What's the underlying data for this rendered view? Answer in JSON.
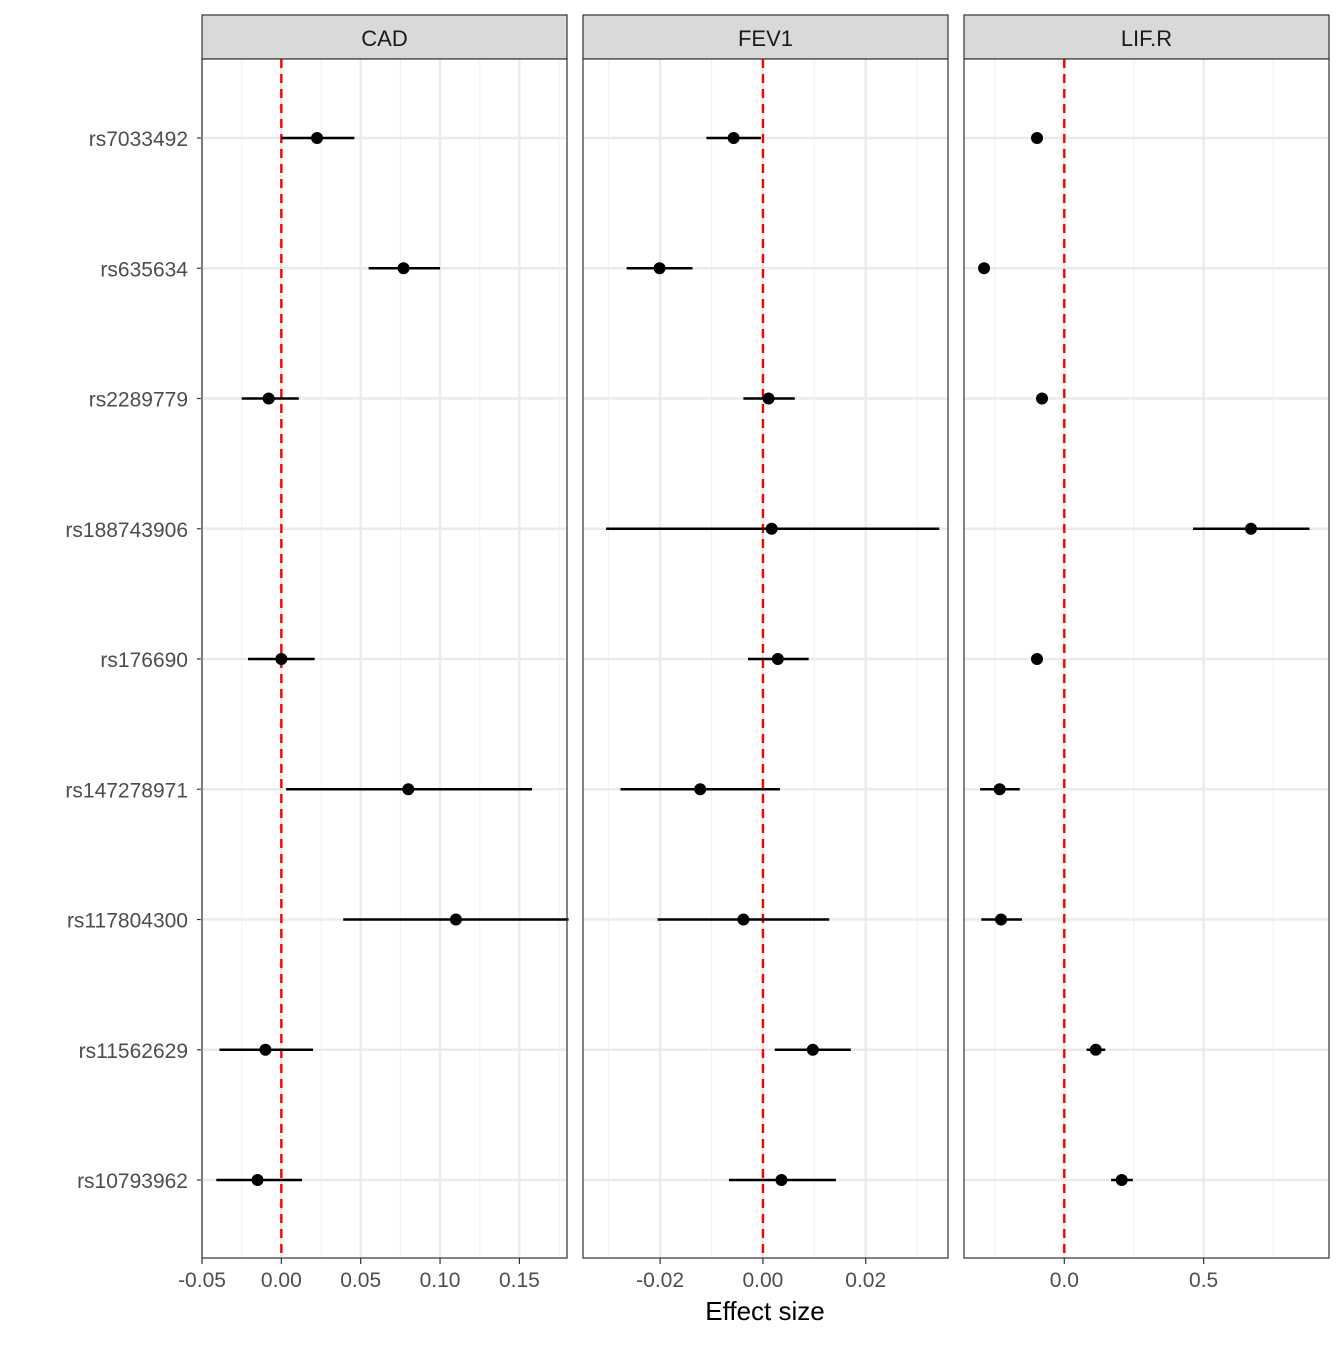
{
  "chart_data": {
    "type": "scatter",
    "subtype": "forest-plot-faceted",
    "xlabel": "Effect size",
    "ylabel": "",
    "reference_line": {
      "x": 0,
      "color": "#ff0000",
      "style": "dashed"
    },
    "grid": true,
    "categories": [
      "rs7033492",
      "rs635634",
      "rs2289779",
      "rs188743906",
      "rs176690",
      "rs147278971",
      "rs117804300",
      "rs11562629",
      "rs10793962"
    ],
    "panels": [
      {
        "name": "CAD",
        "xlim": [
          -0.05,
          0.18
        ],
        "ticks": [
          -0.05,
          0.0,
          0.05,
          0.1,
          0.15
        ],
        "tick_labels": [
          "-0.05",
          "0.00",
          "0.05",
          "0.10",
          "0.15"
        ],
        "points": [
          {
            "snp": "rs7033492",
            "estimate": 0.0225,
            "lower": 0.0,
            "upper": 0.046
          },
          {
            "snp": "rs635634",
            "estimate": 0.077,
            "lower": 0.055,
            "upper": 0.1
          },
          {
            "snp": "rs2289779",
            "estimate": -0.008,
            "lower": -0.025,
            "upper": 0.011
          },
          {
            "snp": "rs176690",
            "estimate": 0.0,
            "lower": -0.021,
            "upper": 0.021
          },
          {
            "snp": "rs147278971",
            "estimate": 0.08,
            "lower": 0.003,
            "upper": 0.158
          },
          {
            "snp": "rs117804300",
            "estimate": 0.11,
            "lower": 0.039,
            "upper": 0.181
          },
          {
            "snp": "rs11562629",
            "estimate": -0.01,
            "lower": -0.039,
            "upper": 0.02
          },
          {
            "snp": "rs10793962",
            "estimate": -0.015,
            "lower": -0.041,
            "upper": 0.013
          }
        ]
      },
      {
        "name": "FEV1",
        "xlim": [
          -0.035,
          0.036
        ],
        "ticks": [
          -0.02,
          0.0,
          0.02
        ],
        "tick_labels": [
          "-0.02",
          "0.00",
          "0.02"
        ],
        "points": [
          {
            "snp": "rs7033492",
            "estimate": -0.0057,
            "lower": -0.011,
            "upper": -0.0004
          },
          {
            "snp": "rs635634",
            "estimate": -0.0201,
            "lower": -0.0265,
            "upper": -0.0137
          },
          {
            "snp": "rs2289779",
            "estimate": 0.0011,
            "lower": -0.0038,
            "upper": 0.0062
          },
          {
            "snp": "rs188743906",
            "estimate": 0.0017,
            "lower": -0.0305,
            "upper": 0.0343
          },
          {
            "snp": "rs176690",
            "estimate": 0.0029,
            "lower": -0.0029,
            "upper": 0.0089
          },
          {
            "snp": "rs147278971",
            "estimate": -0.0122,
            "lower": -0.0277,
            "upper": 0.0033
          },
          {
            "snp": "rs117804300",
            "estimate": -0.0038,
            "lower": -0.0205,
            "upper": 0.0129
          },
          {
            "snp": "rs11562629",
            "estimate": 0.0097,
            "lower": 0.0023,
            "upper": 0.0171
          },
          {
            "snp": "rs10793962",
            "estimate": 0.0036,
            "lower": -0.0066,
            "upper": 0.0142
          }
        ]
      },
      {
        "name": "LIF.R",
        "xlim": [
          -0.36,
          0.95
        ],
        "ticks": [
          0.0,
          0.5
        ],
        "tick_labels": [
          "0.0",
          "0.5"
        ],
        "points": [
          {
            "snp": "rs7033492",
            "estimate": -0.098,
            "lower": -0.118,
            "upper": -0.078
          },
          {
            "snp": "rs635634",
            "estimate": -0.288,
            "lower": -0.303,
            "upper": -0.273
          },
          {
            "snp": "rs2289779",
            "estimate": -0.08,
            "lower": -0.093,
            "upper": -0.066
          },
          {
            "snp": "rs188743906",
            "estimate": 0.67,
            "lower": 0.462,
            "upper": 0.88
          },
          {
            "snp": "rs176690",
            "estimate": -0.098,
            "lower": -0.118,
            "upper": -0.078
          },
          {
            "snp": "rs147278971",
            "estimate": -0.232,
            "lower": -0.302,
            "upper": -0.16
          },
          {
            "snp": "rs117804300",
            "estimate": -0.227,
            "lower": -0.298,
            "upper": -0.152
          },
          {
            "snp": "rs11562629",
            "estimate": 0.113,
            "lower": 0.08,
            "upper": 0.147
          },
          {
            "snp": "rs10793962",
            "estimate": 0.206,
            "lower": 0.168,
            "upper": 0.246
          }
        ]
      }
    ]
  }
}
